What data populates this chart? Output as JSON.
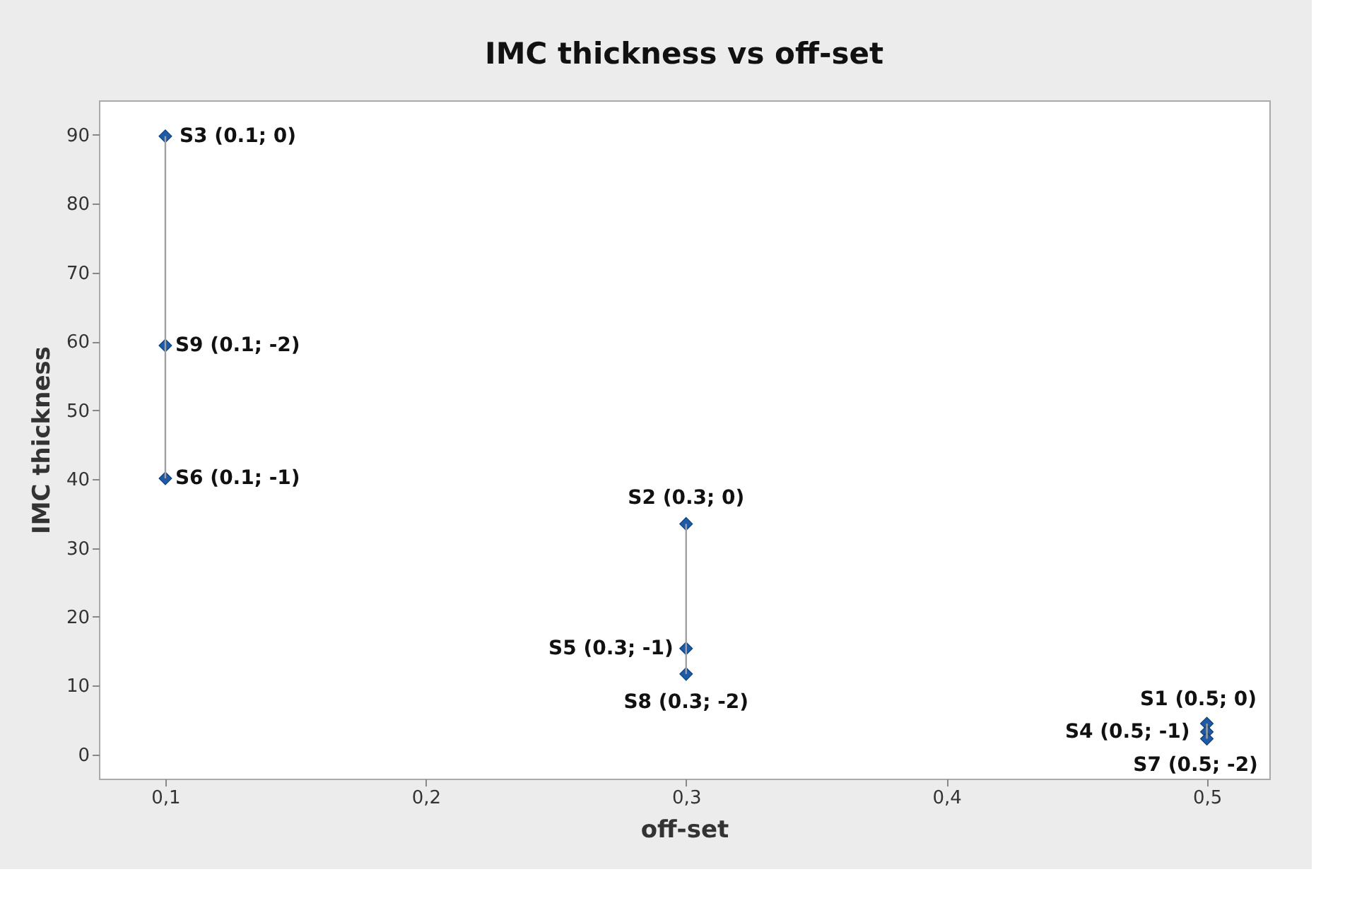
{
  "chart_data": {
    "type": "scatter",
    "title": "IMC thickness vs off-set",
    "xlabel": "off-set",
    "ylabel": "IMC thickness",
    "xlim": [
      0.0745,
      0.524
    ],
    "ylim": [
      -3.5,
      95
    ],
    "xticks": [
      {
        "value": 0.1,
        "label": "0,1"
      },
      {
        "value": 0.2,
        "label": "0,2"
      },
      {
        "value": 0.3,
        "label": "0,3"
      },
      {
        "value": 0.4,
        "label": "0,4"
      },
      {
        "value": 0.5,
        "label": "0,5"
      }
    ],
    "yticks": [
      0,
      10,
      20,
      30,
      40,
      50,
      60,
      70,
      80,
      90
    ],
    "grid": false,
    "series": [
      {
        "type": "line",
        "color": "#a0a0a0",
        "marker": "none",
        "x": [
          0.1,
          0.1
        ],
        "values": [
          40.1,
          89.8
        ]
      },
      {
        "type": "line",
        "color": "#a0a0a0",
        "marker": "none",
        "x": [
          0.3,
          0.3
        ],
        "values": [
          11.7,
          33.5
        ]
      },
      {
        "type": "line",
        "color": "#a0a0a0",
        "marker": "none",
        "x": [
          0.5,
          0.5
        ],
        "values": [
          2.3,
          4.5
        ]
      },
      {
        "color": "#1f5aa6",
        "marker": "diamond",
        "x": [
          0.1,
          0.1,
          0.1,
          0.3,
          0.3,
          0.3,
          0.5,
          0.5,
          0.5
        ],
        "values": [
          89.8,
          59.4,
          40.1,
          33.5,
          15.4,
          11.7,
          4.5,
          3.3,
          2.3
        ]
      }
    ],
    "annotations": [
      {
        "text": "S3 (0.1; 0)",
        "x": 0.1,
        "y": 89.8
      },
      {
        "text": "S9 (0.1; -2)",
        "x": 0.1,
        "y": 59.4
      },
      {
        "text": "S6 (0.1; -1)",
        "x": 0.1,
        "y": 40.1
      },
      {
        "text": "S2 (0.3; 0)",
        "x": 0.3,
        "y": 33.5
      },
      {
        "text": "S5 (0.3; -1)",
        "x": 0.3,
        "y": 15.4
      },
      {
        "text": "S8 (0.3; -2)",
        "x": 0.3,
        "y": 11.7
      },
      {
        "text": "S1 (0.5; 0)",
        "x": 0.5,
        "y": 4.5
      },
      {
        "text": "S4 (0.5; -1)",
        "x": 0.5,
        "y": 3.3
      },
      {
        "text": "S7 (0.5; -2)",
        "x": 0.5,
        "y": 2.3
      }
    ]
  }
}
